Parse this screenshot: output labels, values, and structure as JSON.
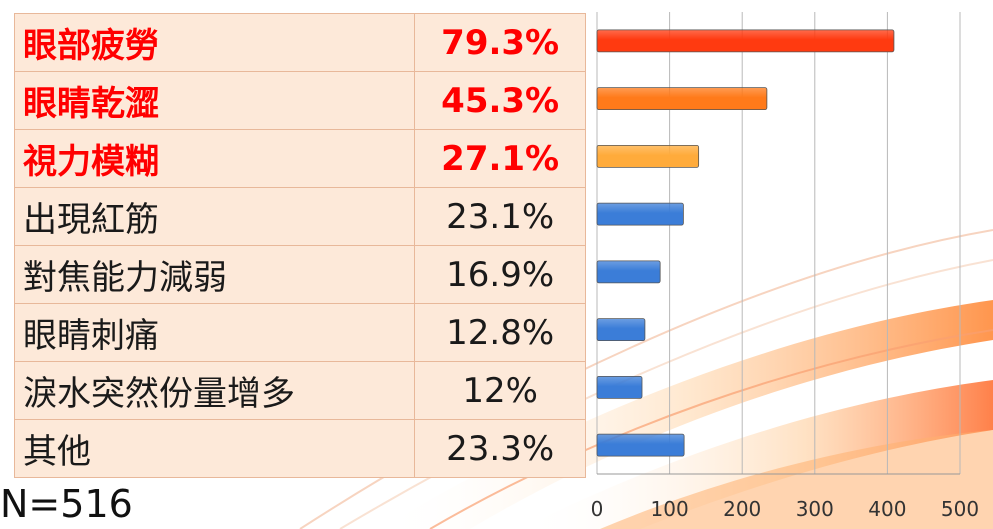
{
  "sample_label": "N=516",
  "colors": {
    "bar_red": "#ff3a10",
    "bar_orange": "#ff7a1a",
    "bar_amber": "#ffab3b",
    "bar_blue": "#3b7dd8",
    "highlight_text": "#ff0000"
  },
  "table": {
    "rows": [
      {
        "label": "眼部疲勞",
        "value": "79.3%",
        "highlight": true
      },
      {
        "label": "眼睛乾澀",
        "value": "45.3%",
        "highlight": true
      },
      {
        "label": "視力模糊",
        "value": "27.1%",
        "highlight": true
      },
      {
        "label": "出現紅筋",
        "value": "23.1%",
        "highlight": false
      },
      {
        "label": "對焦能力減弱",
        "value": "16.9%",
        "highlight": false
      },
      {
        "label": "眼睛刺痛",
        "value": "12.8%",
        "highlight": false
      },
      {
        "label": "淚水突然份量增多",
        "value": "12%",
        "highlight": false
      },
      {
        "label": "其他",
        "value": "23.3%",
        "highlight": false
      }
    ]
  },
  "chart_data": {
    "type": "bar",
    "orientation": "horizontal",
    "categories": [
      "眼部疲勞",
      "眼睛乾澀",
      "視力模糊",
      "出現紅筋",
      "對焦能力減弱",
      "眼睛刺痛",
      "淚水突然份量增多",
      "其他"
    ],
    "values": [
      409,
      234,
      140,
      119,
      87,
      66,
      62,
      120
    ],
    "xlim": [
      0,
      500
    ],
    "xticks": [
      "0",
      "100",
      "200",
      "300",
      "400",
      "500"
    ],
    "grid": true,
    "bar_colors": [
      "#ff3a10",
      "#ff7a1a",
      "#ffab3b",
      "#3b7dd8",
      "#3b7dd8",
      "#3b7dd8",
      "#3b7dd8",
      "#3b7dd8"
    ]
  }
}
